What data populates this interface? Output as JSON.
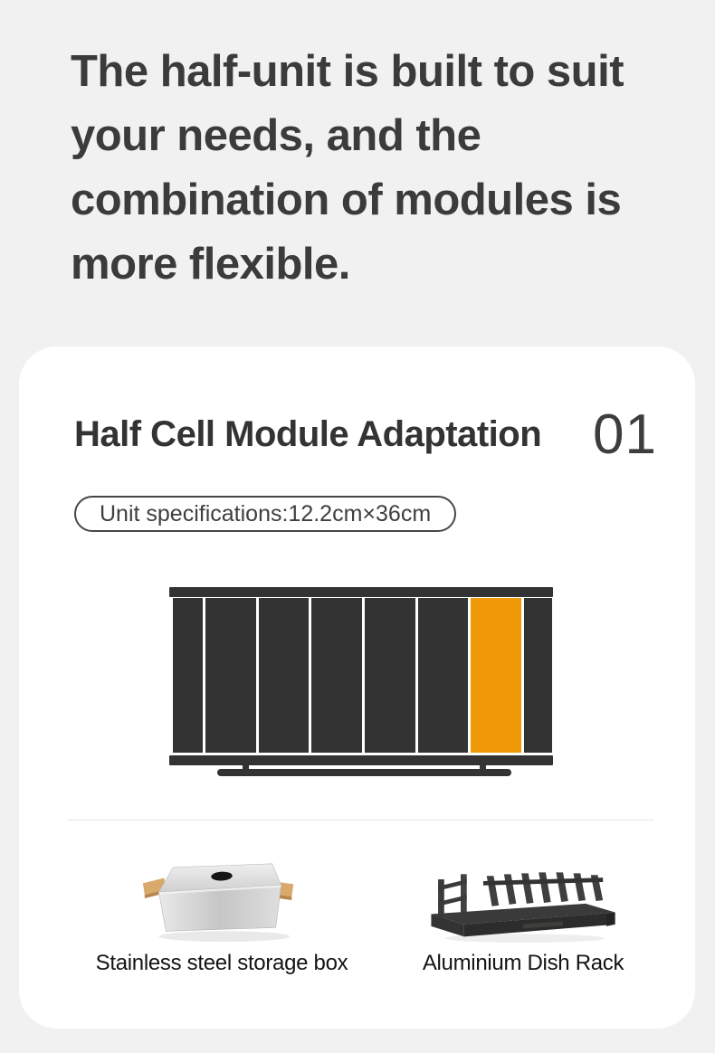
{
  "colors": {
    "page_bg": "#f1f1f2",
    "card_bg": "#ffffff",
    "heading_text": "#3b3b3b",
    "title_text": "#333333",
    "number_text": "#3d3d3d",
    "badge_border": "#474747",
    "badge_text": "#3f3f3f",
    "module_dark": "#333333",
    "module_highlight": "#f09a0a",
    "divider": "#e5e5e5",
    "label_text": "#141414"
  },
  "heading": {
    "text": "The half-unit is built to suit your needs, and the combination of modules is more flexible.",
    "lines": [
      "The half-unit is built to suit",
      "your needs, and the",
      "combination of modules is",
      "more flexible."
    ]
  },
  "card": {
    "section_number": "01",
    "title": "Half Cell Module Adaptation",
    "spec_badge": "Unit specifications:12.2cm×36cm",
    "diagram": {
      "description": "cabinet front with one half-unit module highlighted",
      "modules_total": 8,
      "highlighted_module_index": 6,
      "module_widths": [
        33,
        56,
        55,
        56,
        56,
        55,
        56,
        31
      ]
    },
    "products": [
      {
        "label": "Stainless steel storage box"
      },
      {
        "label": "Aluminium Dish Rack"
      }
    ]
  }
}
